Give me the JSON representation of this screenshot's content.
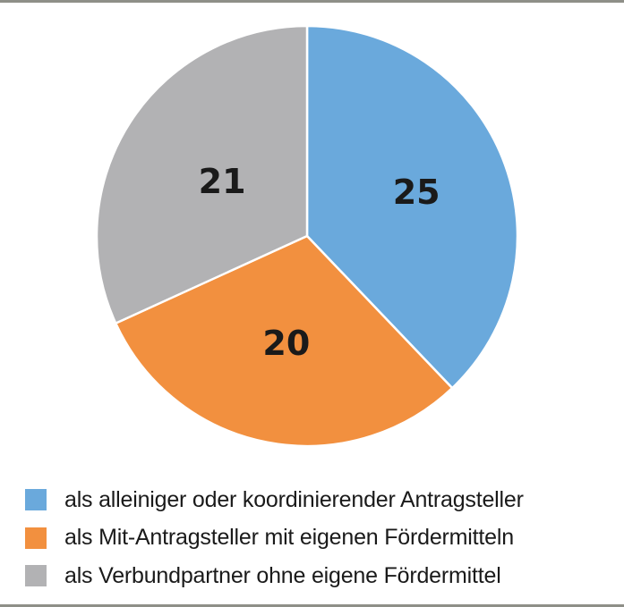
{
  "chart_data": {
    "type": "pie",
    "title": "",
    "categories": [
      "als alleiniger oder koordinierender Antragsteller",
      "als Mit-Antragsteller mit eigenen Fördermitteln",
      "als Verbundpartner ohne eigene Fördermittel"
    ],
    "values": [
      25,
      20,
      21
    ],
    "colors": [
      "#6aa9dc",
      "#f2903f",
      "#b2b2b4"
    ],
    "start_angle_deg": 0,
    "direction": "clockwise",
    "data_labels": [
      "25",
      "20",
      "21"
    ],
    "legend_position": "bottom"
  },
  "legend": {
    "items": [
      {
        "label": "als alleiniger oder koordinierender Antragsteller",
        "color": "#6aa9dc"
      },
      {
        "label": "als Mit-Antragsteller mit eigenen Fördermitteln",
        "color": "#f2903f"
      },
      {
        "label": "als Verbundpartner ohne eigene Fördermittel",
        "color": "#b2b2b4"
      }
    ]
  }
}
